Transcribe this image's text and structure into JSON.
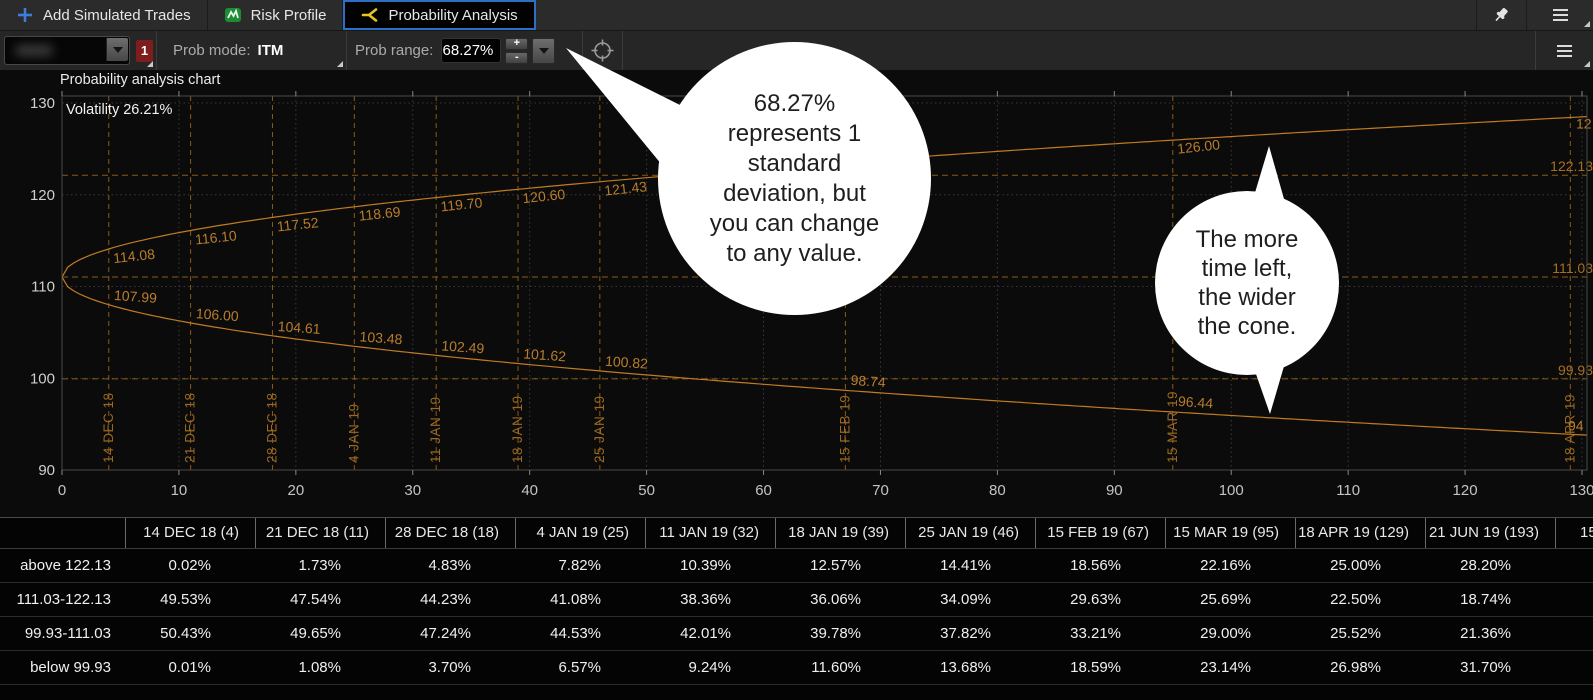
{
  "tabs": {
    "items": [
      {
        "label": "Add Simulated Trades"
      },
      {
        "label": "Risk Profile"
      },
      {
        "label": "Probability Analysis"
      }
    ]
  },
  "toolbar": {
    "badge_count": "1",
    "prob_mode_label": "Prob mode:",
    "prob_mode_value": "ITM",
    "prob_range_label": "Prob range:",
    "prob_range_value": "68.27%"
  },
  "chart": {
    "title": "Probability analysis chart",
    "volatility_text": "Volatility 26.21%"
  },
  "chart_data": {
    "type": "line",
    "title": "Probability analysis chart",
    "volatility": "26.21%",
    "xlim": [
      0,
      130
    ],
    "ylim": [
      90,
      130
    ],
    "x_ticks": [
      0,
      10,
      20,
      30,
      40,
      50,
      60,
      70,
      80,
      90,
      100,
      110,
      120,
      130
    ],
    "y_ticks": [
      90,
      100,
      110,
      120,
      130
    ],
    "start_value": 111.03,
    "band_levels": [
      122.13,
      111.03,
      99.93
    ],
    "expirations": [
      {
        "label": "14 DEC 18",
        "day": 4,
        "upper": 114.08,
        "lower": 107.99
      },
      {
        "label": "21 DEC 18",
        "day": 11,
        "upper": 116.1,
        "lower": 106.0
      },
      {
        "label": "28 DEC 18",
        "day": 18,
        "upper": 117.52,
        "lower": 104.61
      },
      {
        "label": "4 JAN 19",
        "day": 25,
        "upper": 118.69,
        "lower": 103.48
      },
      {
        "label": "11 JAN 19",
        "day": 32,
        "upper": 119.7,
        "lower": 102.49
      },
      {
        "label": "18 JAN 19",
        "day": 39,
        "upper": 120.6,
        "lower": 101.62
      },
      {
        "label": "25 JAN 19",
        "day": 46,
        "upper": 121.43,
        "lower": 100.82
      },
      {
        "label": "15 FEB 19",
        "day": 67,
        "upper": null,
        "lower": 98.74
      },
      {
        "label": "15 MAR 19",
        "day": 95,
        "upper": 126.0,
        "lower": 96.44
      },
      {
        "label": "18 APR 19",
        "day": 129,
        "upper": null,
        "lower": null
      }
    ],
    "edge_label_upper": "12",
    "edge_label_lower": "94",
    "colors": {
      "cone": "#c07b22",
      "cone_label": "#b97d2c",
      "band": "#8a5b16",
      "band_label": "#a76e22",
      "grid": "#3a3a3a",
      "expiry_label": "#9a6820"
    }
  },
  "bubbles": [
    {
      "lines": [
        "68.27%",
        "represents 1",
        "standard",
        "deviation, but",
        "you can change",
        "to any value."
      ]
    },
    {
      "lines": [
        "The more",
        "time left,",
        "the wider",
        "the cone."
      ]
    }
  ],
  "table": {
    "columns": [
      "14 DEC 18 (4)",
      "21 DEC 18 (11)",
      "28 DEC 18 (18)",
      "4 JAN 19 (25)",
      "11 JAN 19 (32)",
      "18 JAN 19 (39)",
      "25 JAN 19 (46)",
      "15 FEB 19 (67)",
      "15 MAR 19 (95)",
      "18 APR 19 (129)",
      "21 JUN 19 (193)"
    ],
    "cut_column": "15",
    "rows": [
      {
        "label": "above 122.13",
        "values": [
          "0.02%",
          "1.73%",
          "4.83%",
          "7.82%",
          "10.39%",
          "12.57%",
          "14.41%",
          "18.56%",
          "22.16%",
          "25.00%",
          "28.20%"
        ]
      },
      {
        "label": "111.03-122.13",
        "values": [
          "49.53%",
          "47.54%",
          "44.23%",
          "41.08%",
          "38.36%",
          "36.06%",
          "34.09%",
          "29.63%",
          "25.69%",
          "22.50%",
          "18.74%"
        ]
      },
      {
        "label": "99.93-111.03",
        "values": [
          "50.43%",
          "49.65%",
          "47.24%",
          "44.53%",
          "42.01%",
          "39.78%",
          "37.82%",
          "33.21%",
          "29.00%",
          "25.52%",
          "21.36%"
        ]
      },
      {
        "label": "below 99.93",
        "values": [
          "0.01%",
          "1.08%",
          "3.70%",
          "6.57%",
          "9.24%",
          "11.60%",
          "13.68%",
          "18.59%",
          "23.14%",
          "26.98%",
          "31.70%"
        ]
      }
    ]
  }
}
